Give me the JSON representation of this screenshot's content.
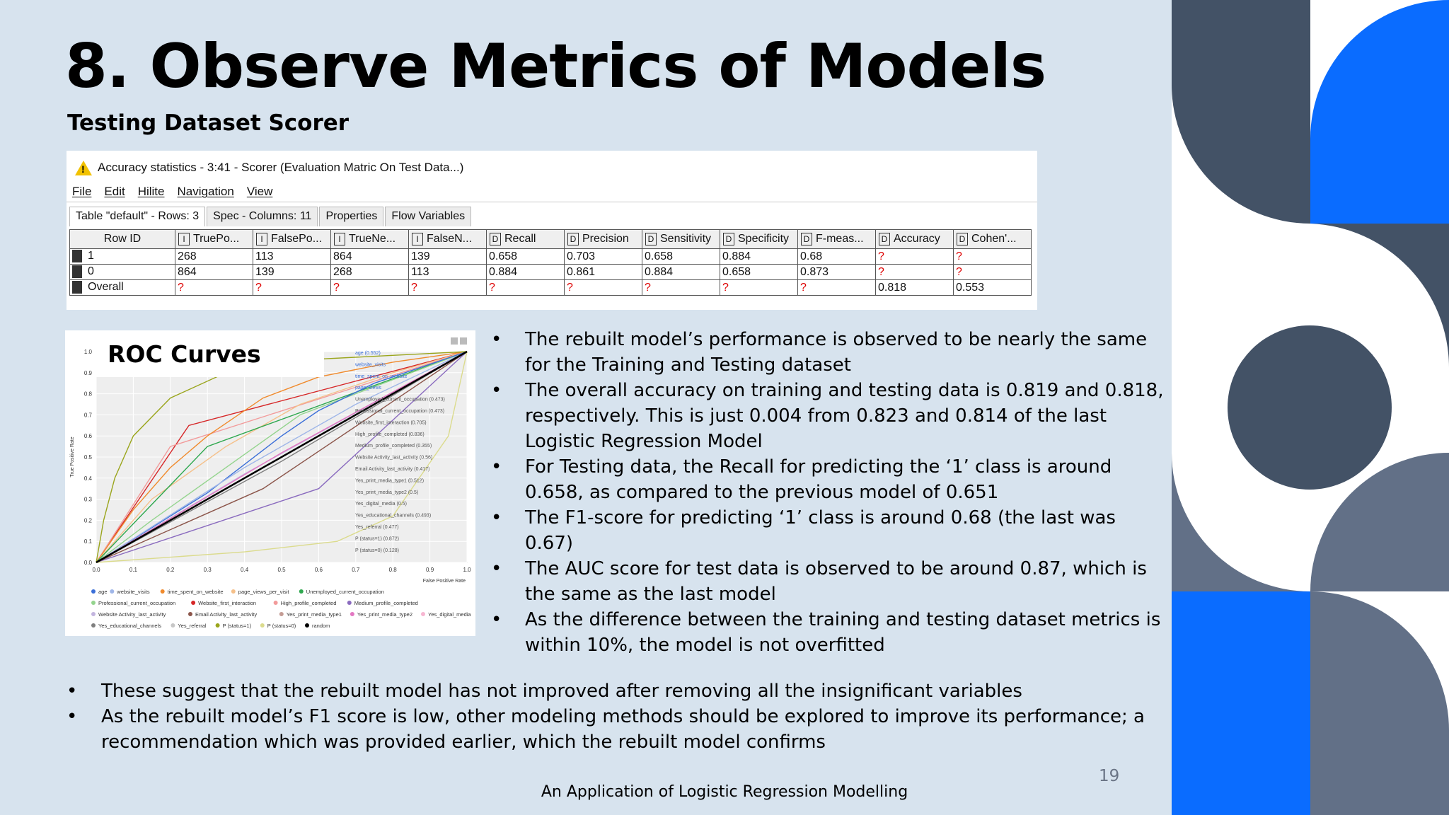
{
  "slide": {
    "title": "8. Observe Metrics of Models",
    "subtitle": "Testing Dataset Scorer",
    "page_number": "19",
    "footer": "An Application of Logistic Regression Modelling"
  },
  "scorer_window": {
    "title": "Accuracy statistics - 3:41 - Scorer (Evaluation Matric On Test Data...)",
    "icon": "warning-icon",
    "menu": [
      "File",
      "Edit",
      "Hilite",
      "Navigation",
      "View"
    ],
    "tabs": [
      "Table \"default\" - Rows: 3",
      "Spec - Columns: 11",
      "Properties",
      "Flow Variables"
    ],
    "columns": [
      {
        "type": "",
        "label": "Row ID"
      },
      {
        "type": "I",
        "label": "TruePo..."
      },
      {
        "type": "I",
        "label": "FalsePo..."
      },
      {
        "type": "I",
        "label": "TrueNe..."
      },
      {
        "type": "I",
        "label": "FalseN..."
      },
      {
        "type": "D",
        "label": "Recall"
      },
      {
        "type": "D",
        "label": "Precision"
      },
      {
        "type": "D",
        "label": "Sensitivity"
      },
      {
        "type": "D",
        "label": "Specificity"
      },
      {
        "type": "D",
        "label": "F-meas..."
      },
      {
        "type": "D",
        "label": "Accuracy"
      },
      {
        "type": "D",
        "label": "Cohen'..."
      }
    ],
    "rows": [
      [
        "1",
        "268",
        "113",
        "864",
        "139",
        "0.658",
        "0.703",
        "0.658",
        "0.884",
        "0.68",
        "?",
        "?"
      ],
      [
        "0",
        "864",
        "139",
        "268",
        "113",
        "0.884",
        "0.861",
        "0.884",
        "0.658",
        "0.873",
        "?",
        "?"
      ],
      [
        "Overall",
        "?",
        "?",
        "?",
        "?",
        "?",
        "?",
        "?",
        "?",
        "?",
        "0.818",
        "0.553"
      ]
    ]
  },
  "roc": {
    "label": "ROC Curves",
    "ylabel": "True Positive Rate",
    "xlabel": "False Positive Rate",
    "legend_in_plot": [
      "age (0.552)",
      "website_visits",
      "time_spent_on_website",
      "page_views",
      "Unemployed_current_occupation (0.473)",
      "Professional_current_occupation (0.473)",
      "Website_first_interaction (0.705)",
      "High_profile_completed (0.836)",
      "Medium_profile_completed (0.355)",
      "Website Activity_last_activity (0.56)",
      "Email Activity_last_activity (0.417)",
      "Yes_print_media_type1 (0.512)",
      "Yes_print_media_type2 (0.5)",
      "Yes_digital_media (0.5)",
      "Yes_educational_channels (0.493)",
      "Yes_referral (0.477)",
      "P (status=1) (0.872)",
      "P (status=0) (0.128)"
    ],
    "legend_bottom": [
      {
        "name": "age",
        "color": "#3b6fd8"
      },
      {
        "name": "website_visits",
        "color": "#9fb6e8"
      },
      {
        "name": "time_spent_on_website",
        "color": "#f08a2c"
      },
      {
        "name": "page_views_per_visit",
        "color": "#f5c08a"
      },
      {
        "name": "Unemployed_current_occupation",
        "color": "#2fa84f"
      },
      {
        "name": "Professional_current_occupation",
        "color": "#94d48e"
      },
      {
        "name": "Website_first_interaction",
        "color": "#d62728"
      },
      {
        "name": "High_profile_completed",
        "color": "#f29b9b"
      },
      {
        "name": "Medium_profile_completed",
        "color": "#8a6bbf"
      },
      {
        "name": "Website Activity_last_activity",
        "color": "#c3b5df"
      },
      {
        "name": "Email Activity_last_activity",
        "color": "#8c564b"
      },
      {
        "name": "Yes_print_media_type1",
        "color": "#c49c94"
      },
      {
        "name": "Yes_print_media_type2",
        "color": "#e377c2"
      },
      {
        "name": "Yes_digital_media",
        "color": "#f7b6d2"
      },
      {
        "name": "Yes_educational_channels",
        "color": "#7f7f7f"
      },
      {
        "name": "Yes_referral",
        "color": "#c7c7c7"
      },
      {
        "name": "P (status=1)",
        "color": "#9aa51c"
      },
      {
        "name": "P (status=0)",
        "color": "#dbdb8d"
      },
      {
        "name": "random",
        "color": "#000000"
      }
    ]
  },
  "bullets_right": [
    "The rebuilt model’s performance is observed to be nearly the same for the Training and Testing dataset",
    "The overall accuracy on training and testing data is 0.819 and 0.818, respectively. This is just 0.004 from 0.823 and 0.814 of the last Logistic Regression Model",
    "For Testing data, the Recall for predicting the ‘1’ class is around 0.658, as compared to the previous model of 0.651",
    "The F1-score for predicting ‘1’ class is around 0.68 (the last was 0.67)",
    "The AUC score for test data is observed to be around 0.87, which is the same as the last model",
    "As the difference between the training and testing dataset metrics is within 10%, the model is not overfitted"
  ],
  "bullets_bottom": [
    "These suggest that the rebuilt model has not improved after removing all the insignificant variables",
    "As the rebuilt model’s F1 score is low, other modeling methods should be explored to improve its performance; a recommendation which was provided earlier, which the rebuilt model confirms"
  ],
  "colors": {
    "background": "#d7e3ee",
    "deco_navy": "#435266",
    "deco_blue": "#0a6cff",
    "deco_slate": "#627087"
  }
}
